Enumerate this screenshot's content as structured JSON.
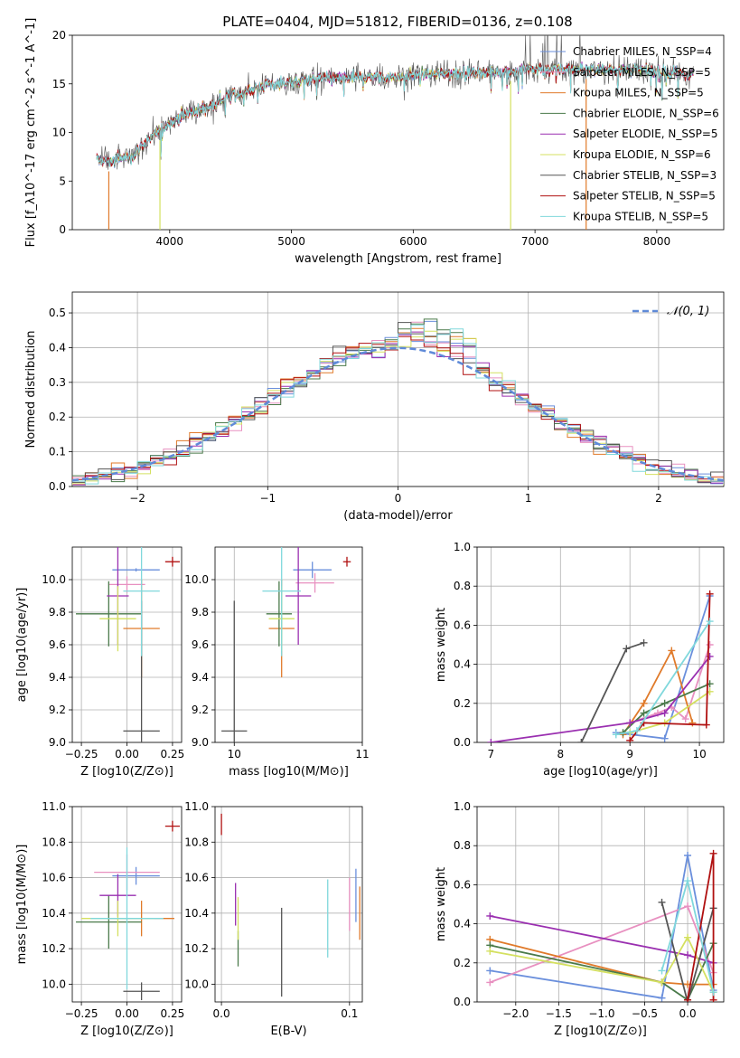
{
  "figure": {
    "title": "PLATE=0404, MJD=51812, FIBERID=0136, z=0.108",
    "colors": {
      "chabrier_miles": "#6a8fdc",
      "salpeter_miles": "#e890c0",
      "kroupa_miles": "#e07a2a",
      "chabrier_elodie": "#4a7a4a",
      "salpeter_elodie": "#9a2fb0",
      "kroupa_elodie": "#d4e060",
      "chabrier_stelib": "#555555",
      "salpeter_stelib": "#b01010",
      "kroupa_stelib": "#80d8dc"
    }
  },
  "chart_data": [
    {
      "type": "line",
      "panel": "spectrum",
      "xlabel": "wavelength [Angstrom, rest frame]",
      "ylabel": "Flux [f_λ10^-17 erg cm^-2 s^-1 A^-1]",
      "xlim": [
        3200,
        8550
      ],
      "ylim": [
        0,
        20
      ],
      "xticks": [
        "4000",
        "5000",
        "6000",
        "7000",
        "8000"
      ],
      "yticks": [
        "0",
        "5",
        "10",
        "15",
        "20"
      ],
      "legend_position": "top-right",
      "series": [
        {
          "name": "Chabrier MILES, N_SSP=4",
          "key": "chabrier_miles"
        },
        {
          "name": "Salpeter MILES, N_SSP=5",
          "key": "salpeter_miles"
        },
        {
          "name": "Kroupa MILES, N_SSP=5",
          "key": "kroupa_miles"
        },
        {
          "name": "Chabrier ELODIE, N_SSP=6",
          "key": "chabrier_elodie"
        },
        {
          "name": "Salpeter ELODIE, N_SSP=5",
          "key": "salpeter_elodie"
        },
        {
          "name": "Kroupa ELODIE, N_SSP=6",
          "key": "kroupa_elodie"
        },
        {
          "name": "Chabrier STELIB, N_SSP=3",
          "key": "chabrier_stelib"
        },
        {
          "name": "Salpeter STELIB, N_SSP=5",
          "key": "salpeter_stelib"
        },
        {
          "name": "Kroupa STELIB, N_SSP=5",
          "key": "kroupa_stelib"
        }
      ],
      "envelope": {
        "x": [
          3400,
          3500,
          3600,
          3700,
          3800,
          3900,
          4000,
          4100,
          4200,
          4300,
          4400,
          4500,
          4600,
          4700,
          4800,
          5000,
          5200,
          5400,
          5600,
          5800,
          6000,
          6200,
          6400,
          6600,
          6800,
          7000,
          7200,
          7400,
          7600,
          7800,
          8000,
          8200,
          8300
        ],
        "y": [
          7.2,
          7.0,
          7.3,
          7.6,
          9.0,
          10.0,
          11.0,
          11.8,
          12.2,
          12.5,
          13.2,
          13.8,
          14.1,
          14.5,
          14.9,
          15.2,
          15.5,
          15.6,
          15.7,
          15.7,
          15.9,
          16.0,
          16.2,
          16.2,
          16.3,
          16.5,
          16.6,
          16.5,
          16.5,
          16.4,
          16.3,
          16.0,
          16.0
        ]
      },
      "dropouts": [
        {
          "x": 3500,
          "key": "kroupa_miles"
        },
        {
          "x": 3920,
          "key": "kroupa_elodie"
        },
        {
          "x": 6800,
          "key": "kroupa_elodie"
        },
        {
          "x": 7420,
          "key": "kroupa_miles"
        }
      ]
    },
    {
      "type": "line",
      "panel": "residuals",
      "xlabel": "(data-model)/error",
      "ylabel": "Normed distribution",
      "xlim": [
        -2.5,
        2.5
      ],
      "ylim": [
        0,
        0.56
      ],
      "xticks": [
        "−2",
        "−1",
        "0",
        "1",
        "2"
      ],
      "yticks": [
        "0.0",
        "0.1",
        "0.2",
        "0.3",
        "0.4",
        "0.5"
      ],
      "legend_position": "top-right",
      "reference_curve": {
        "name": "𝒩(0, 1)",
        "mean": 0,
        "sigma": 1
      }
    },
    {
      "type": "scatter",
      "panel": "age_vs_Z",
      "xlabel": "Z [log10(Z/Z⊙)]",
      "ylabel": "age [log10(age/yr)]",
      "xlim": [
        -0.3,
        0.3
      ],
      "ylim": [
        9.0,
        10.2
      ],
      "xticks": [
        "−0.25",
        "0.00",
        "0.25"
      ],
      "yticks": [
        "9.0",
        "9.2",
        "9.4",
        "9.6",
        "9.8",
        "10.0"
      ],
      "points": [
        {
          "key": "chabrier_miles",
          "x": 0.05,
          "xerr": 0.13,
          "y": 10.06,
          "yerr": 0.01
        },
        {
          "key": "salpeter_miles",
          "x": 0.0,
          "xerr": 0.1,
          "y": 9.97,
          "yerr": 0.05
        },
        {
          "key": "kroupa_miles",
          "x": 0.08,
          "xerr": 0.1,
          "y": 9.7,
          "yerr": 0.3
        },
        {
          "key": "chabrier_elodie",
          "x": -0.1,
          "xerr": 0.18,
          "y": 9.79,
          "yerr": 0.2
        },
        {
          "key": "salpeter_elodie",
          "x": -0.05,
          "xerr": 0.06,
          "y": 9.9,
          "yerr": 0.3
        },
        {
          "key": "kroupa_elodie",
          "x": -0.05,
          "xerr": 0.1,
          "y": 9.76,
          "yerr": 0.2
        },
        {
          "key": "chabrier_stelib",
          "x": 0.08,
          "xerr": 0.1,
          "y": 9.07,
          "yerr": 0.8
        },
        {
          "key": "salpeter_stelib",
          "x": 0.25,
          "xerr": 0.04,
          "y": 10.11,
          "yerr": 0.03
        },
        {
          "key": "kroupa_stelib",
          "x": 0.08,
          "xerr": 0.1,
          "y": 9.93,
          "yerr": 0.4
        }
      ]
    },
    {
      "type": "scatter",
      "panel": "age_vs_mass",
      "xlabel": "mass [log10(M/M⊙)]",
      "ylabel": "",
      "xlim": [
        9.85,
        11.0
      ],
      "ylim": [
        9.0,
        10.2
      ],
      "xticks": [
        "10",
        "11"
      ],
      "yticks": [
        "9.0",
        "9.2",
        "9.4",
        "9.6",
        "9.8",
        "10.0"
      ],
      "points": [
        {
          "key": "chabrier_miles",
          "x": 10.61,
          "xerr": 0.15,
          "y": 10.06,
          "yerr": 0.05
        },
        {
          "key": "salpeter_miles",
          "x": 10.63,
          "xerr": 0.15,
          "y": 9.98,
          "yerr": 0.06
        },
        {
          "key": "kroupa_miles",
          "x": 10.37,
          "xerr": 0.1,
          "y": 9.7,
          "yerr": 0.3
        },
        {
          "key": "chabrier_elodie",
          "x": 10.35,
          "xerr": 0.1,
          "y": 9.79,
          "yerr": 0.2
        },
        {
          "key": "salpeter_elodie",
          "x": 10.5,
          "xerr": 0.1,
          "y": 9.9,
          "yerr": 0.3
        },
        {
          "key": "kroupa_elodie",
          "x": 10.37,
          "xerr": 0.1,
          "y": 9.76,
          "yerr": 0.2
        },
        {
          "key": "chabrier_stelib",
          "x": 10.0,
          "xerr": 0.1,
          "y": 9.07,
          "yerr": 0.8
        },
        {
          "key": "salpeter_stelib",
          "x": 10.88,
          "xerr": 0.03,
          "y": 10.11,
          "yerr": 0.03
        },
        {
          "key": "kroupa_stelib",
          "x": 10.37,
          "xerr": 0.15,
          "y": 9.93,
          "yerr": 0.4
        }
      ]
    },
    {
      "type": "line",
      "panel": "mass_weight_vs_age",
      "xlabel": "age [log10(age/yr)]",
      "ylabel": "mass weight",
      "xlim": [
        6.8,
        10.35
      ],
      "ylim": [
        0,
        1.0
      ],
      "xticks": [
        "7",
        "8",
        "9",
        "10"
      ],
      "yticks": [
        "0.0",
        "0.2",
        "0.4",
        "0.6",
        "0.8",
        "1.0"
      ],
      "series": [
        {
          "key": "chabrier_miles",
          "x": [
            8.8,
            9.5,
            10.15
          ],
          "y": [
            0.05,
            0.02,
            0.75
          ]
        },
        {
          "key": "salpeter_miles",
          "x": [
            9.0,
            9.4,
            9.6,
            9.8,
            10.15
          ],
          "y": [
            0.1,
            0.15,
            0.18,
            0.12,
            0.5
          ]
        },
        {
          "key": "kroupa_miles",
          "x": [
            8.9,
            9.2,
            9.6,
            9.9
          ],
          "y": [
            0.04,
            0.2,
            0.47,
            0.1
          ]
        },
        {
          "key": "chabrier_elodie",
          "x": [
            8.9,
            9.2,
            9.5,
            10.15
          ],
          "y": [
            0.05,
            0.15,
            0.2,
            0.3
          ]
        },
        {
          "key": "salpeter_elodie",
          "x": [
            7.0,
            9.0,
            9.5,
            10.15
          ],
          "y": [
            0.0,
            0.1,
            0.15,
            0.44
          ]
        },
        {
          "key": "kroupa_elodie",
          "x": [
            9.0,
            9.5,
            10.15
          ],
          "y": [
            0.05,
            0.1,
            0.26
          ]
        },
        {
          "key": "chabrier_stelib",
          "x": [
            8.3,
            8.95,
            9.2
          ],
          "y": [
            0.0,
            0.48,
            0.51
          ]
        },
        {
          "key": "salpeter_stelib",
          "x": [
            9.0,
            9.2,
            10.1,
            10.15
          ],
          "y": [
            0.01,
            0.1,
            0.09,
            0.76
          ]
        },
        {
          "key": "kroupa_stelib",
          "x": [
            8.8,
            9.1,
            10.15
          ],
          "y": [
            0.04,
            0.06,
            0.62
          ]
        }
      ]
    },
    {
      "type": "scatter",
      "panel": "mass_vs_Z",
      "xlabel": "Z [log10(Z/Z⊙)]",
      "ylabel": "mass [log10(M/M⊙)]",
      "xlim": [
        -0.3,
        0.3
      ],
      "ylim": [
        9.9,
        11.0
      ],
      "xticks": [
        "−0.25",
        "0.00",
        "0.25"
      ],
      "yticks": [
        "10.0",
        "10.2",
        "10.4",
        "10.6",
        "10.8",
        "11.0"
      ],
      "points": [
        {
          "key": "chabrier_miles",
          "x": 0.05,
          "xerr": 0.13,
          "y": 10.61,
          "yerr": 0.05
        },
        {
          "key": "salpeter_miles",
          "x": 0.0,
          "xerr": 0.18,
          "y": 10.63,
          "yerr": 0.1
        },
        {
          "key": "kroupa_miles",
          "x": 0.08,
          "xerr": 0.18,
          "y": 10.37,
          "yerr": 0.1
        },
        {
          "key": "chabrier_elodie",
          "x": -0.1,
          "xerr": 0.18,
          "y": 10.35,
          "yerr": 0.15
        },
        {
          "key": "salpeter_elodie",
          "x": -0.05,
          "xerr": 0.1,
          "y": 10.5,
          "yerr": 0.12
        },
        {
          "key": "kroupa_elodie",
          "x": -0.05,
          "xerr": 0.2,
          "y": 10.37,
          "yerr": 0.1
        },
        {
          "key": "chabrier_stelib",
          "x": 0.08,
          "xerr": 0.1,
          "y": 9.96,
          "yerr": 0.05
        },
        {
          "key": "salpeter_stelib",
          "x": 0.25,
          "xerr": 0.04,
          "y": 10.89,
          "yerr": 0.03
        },
        {
          "key": "kroupa_stelib",
          "x": 0.0,
          "xerr": 0.2,
          "y": 10.37,
          "yerr": 0.4
        }
      ]
    },
    {
      "type": "scatter",
      "panel": "mass_vs_ebv",
      "xlabel": "E(B-V)",
      "ylabel": "",
      "xlim": [
        -0.005,
        0.11
      ],
      "ylim": [
        9.9,
        11.0
      ],
      "xticks": [
        "0.0",
        "0.1"
      ],
      "yticks": [
        "10.0",
        "10.2",
        "10.4",
        "10.6",
        "10.8",
        "11.0"
      ],
      "points": [
        {
          "key": "chabrier_miles",
          "x": 0.105,
          "y": 10.5,
          "yerr": 0.15
        },
        {
          "key": "salpeter_miles",
          "x": 0.1,
          "y": 10.45,
          "yerr": 0.15
        },
        {
          "key": "kroupa_miles",
          "x": 0.108,
          "y": 10.4,
          "yerr": 0.15
        },
        {
          "key": "chabrier_elodie",
          "x": 0.013,
          "y": 10.2,
          "yerr": 0.1
        },
        {
          "key": "salpeter_elodie",
          "x": 0.011,
          "y": 10.45,
          "yerr": 0.12
        },
        {
          "key": "kroupa_elodie",
          "x": 0.013,
          "y": 10.37,
          "yerr": 0.12
        },
        {
          "key": "chabrier_stelib",
          "x": 0.047,
          "y": 10.18,
          "yerr": 0.25
        },
        {
          "key": "salpeter_stelib",
          "x": 0.0,
          "y": 10.9,
          "yerr": 0.06
        },
        {
          "key": "kroupa_stelib",
          "x": 0.083,
          "y": 10.37,
          "yerr": 0.22
        }
      ]
    },
    {
      "type": "line",
      "panel": "mass_weight_vs_Z",
      "xlabel": "Z [log10(Z/Z⊙)]",
      "ylabel": "mass weight",
      "xlim": [
        -2.45,
        0.42
      ],
      "ylim": [
        0,
        1.0
      ],
      "xticks": [
        "−2.0",
        "−1.5",
        "−1.0",
        "−0.5",
        "0.0"
      ],
      "yticks": [
        "0.0",
        "0.2",
        "0.4",
        "0.6",
        "0.8",
        "1.0"
      ],
      "series": [
        {
          "key": "chabrier_miles",
          "x": [
            -2.3,
            -0.3,
            0.0,
            0.3
          ],
          "y": [
            0.16,
            0.02,
            0.75,
            0.06
          ]
        },
        {
          "key": "salpeter_miles",
          "x": [
            -2.3,
            0.0,
            0.3
          ],
          "y": [
            0.1,
            0.49,
            0.15
          ]
        },
        {
          "key": "kroupa_miles",
          "x": [
            -2.3,
            -0.3,
            0.0,
            0.3
          ],
          "y": [
            0.32,
            0.1,
            0.09,
            0.09
          ]
        },
        {
          "key": "chabrier_elodie",
          "x": [
            -2.3,
            -0.3,
            0.0,
            0.3
          ],
          "y": [
            0.29,
            0.1,
            0.01,
            0.3
          ]
        },
        {
          "key": "salpeter_elodie",
          "x": [
            -2.3,
            0.0,
            0.3
          ],
          "y": [
            0.44,
            0.24,
            0.2
          ]
        },
        {
          "key": "kroupa_elodie",
          "x": [
            -2.3,
            -0.3,
            0.0,
            0.3
          ],
          "y": [
            0.26,
            0.1,
            0.33,
            0.05
          ]
        },
        {
          "key": "chabrier_stelib",
          "x": [
            -0.3,
            0.0,
            0.3
          ],
          "y": [
            0.51,
            0.0,
            0.48
          ]
        },
        {
          "key": "salpeter_stelib",
          "x": [
            0.0,
            0.3,
            0.3
          ],
          "y": [
            0.01,
            0.76,
            0.01
          ]
        },
        {
          "key": "kroupa_stelib",
          "x": [
            -0.3,
            0.0,
            0.3
          ],
          "y": [
            0.16,
            0.62,
            0.05
          ]
        }
      ]
    }
  ]
}
